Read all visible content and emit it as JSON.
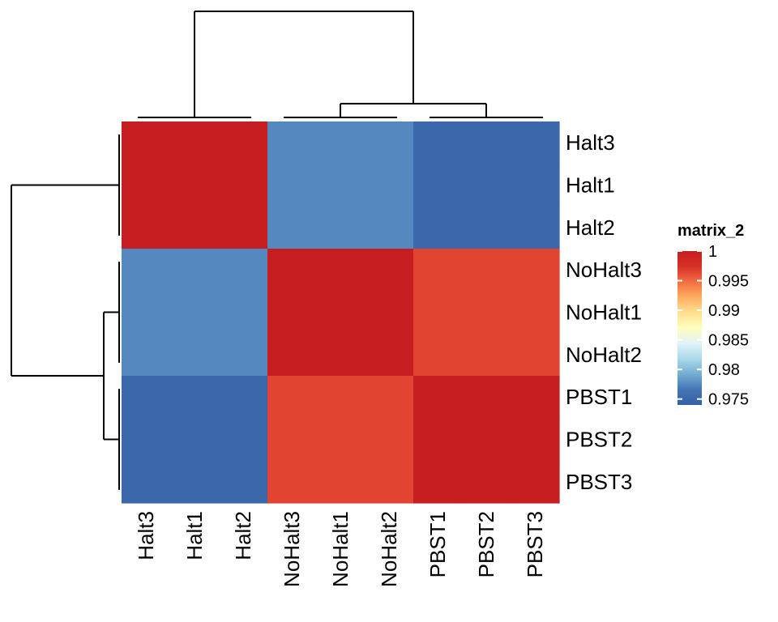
{
  "chart_data": {
    "type": "heatmap",
    "legend": {
      "title": "matrix_2",
      "ticks": [
        1,
        0.995,
        0.99,
        0.985,
        0.98,
        0.975
      ],
      "tick_labels": [
        "1",
        "0.995",
        "0.99",
        "0.985",
        "0.98",
        "0.975"
      ],
      "range": [
        0.974,
        1.0
      ],
      "colors": [
        "#3360a4",
        "#4575b4",
        "#74add1",
        "#abd9e9",
        "#e0f3f8",
        "#ffffbf",
        "#fee090",
        "#fdae61",
        "#f46d43",
        "#d73027",
        "#c71e21"
      ],
      "placement": "right"
    },
    "row_labels": [
      "Halt3",
      "Halt1",
      "Halt2",
      "NoHalt3",
      "NoHalt1",
      "NoHalt2",
      "PBST1",
      "PBST2",
      "PBST3"
    ],
    "col_labels": [
      "Halt3",
      "Halt1",
      "Halt2",
      "NoHalt3",
      "NoHalt1",
      "NoHalt2",
      "PBST1",
      "PBST2",
      "PBST3"
    ],
    "values": [
      [
        1.0,
        1.0,
        1.0,
        0.9775,
        0.9775,
        0.9775,
        0.975,
        0.975,
        0.975
      ],
      [
        1.0,
        1.0,
        1.0,
        0.9775,
        0.9775,
        0.9775,
        0.975,
        0.975,
        0.975
      ],
      [
        1.0,
        1.0,
        1.0,
        0.9775,
        0.9775,
        0.9775,
        0.975,
        0.975,
        0.975
      ],
      [
        0.9775,
        0.9775,
        0.9775,
        1.0,
        1.0,
        1.0,
        0.9965,
        0.9965,
        0.9965
      ],
      [
        0.9775,
        0.9775,
        0.9775,
        1.0,
        1.0,
        1.0,
        0.9965,
        0.9965,
        0.9965
      ],
      [
        0.9775,
        0.9775,
        0.9775,
        1.0,
        1.0,
        1.0,
        0.9965,
        0.9965,
        0.9965
      ],
      [
        0.975,
        0.975,
        0.975,
        0.9965,
        0.9965,
        0.9965,
        1.0,
        1.0,
        1.0
      ],
      [
        0.975,
        0.975,
        0.975,
        0.9965,
        0.9965,
        0.9965,
        1.0,
        1.0,
        1.0
      ],
      [
        0.975,
        0.975,
        0.975,
        0.9965,
        0.9965,
        0.9965,
        1.0,
        1.0,
        1.0
      ]
    ],
    "dendrograms": {
      "rows": "left",
      "cols": "top",
      "row_merges": [
        [
          "Halt3",
          "Halt1",
          "Halt2"
        ],
        [
          "NoHalt3",
          "NoHalt1",
          "NoHalt2"
        ],
        [
          "PBST1",
          "PBST2",
          "PBST3"
        ],
        [
          [
            "NoHalt3",
            "NoHalt1",
            "NoHalt2"
          ],
          [
            "PBST1",
            "PBST2",
            "PBST3"
          ]
        ],
        "all"
      ],
      "col_merges": [
        [
          "Halt3",
          "Halt1",
          "Halt2"
        ],
        [
          "NoHalt3",
          "NoHalt1",
          "NoHalt2"
        ],
        [
          "PBST1",
          "PBST2",
          "PBST3"
        ],
        [
          [
            "NoHalt3",
            "NoHalt1",
            "NoHalt2"
          ],
          [
            "PBST1",
            "PBST2",
            "PBST3"
          ]
        ],
        "all"
      ]
    }
  }
}
